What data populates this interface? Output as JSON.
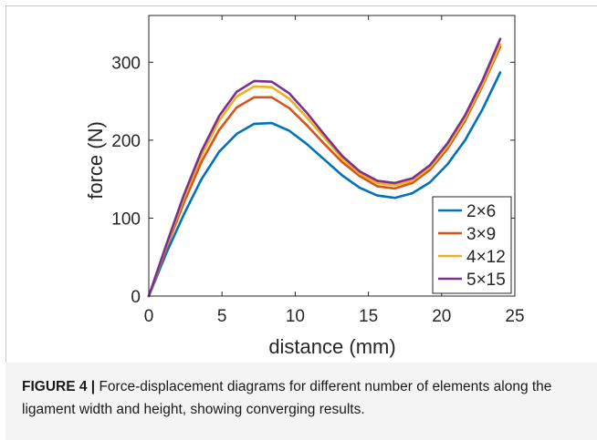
{
  "figure": {
    "caption_label": "FIGURE 4 |",
    "caption_text": " Force-displacement diagrams for different number of elements along the ligament width and height, showing converging results."
  },
  "chart_data": {
    "type": "line",
    "xlabel": "distance (mm)",
    "ylabel": "force (N)",
    "xlim": [
      0,
      25
    ],
    "ylim": [
      0,
      360
    ],
    "xticks": [
      0,
      5,
      10,
      15,
      20,
      25
    ],
    "yticks": [
      0,
      100,
      200,
      300
    ],
    "grid": false,
    "legend_position": "bottom-right",
    "series": [
      {
        "name": "2×6",
        "color": "#0072bd",
        "x": [
          0,
          1.2,
          2.4,
          3.6,
          4.8,
          6.0,
          7.2,
          8.4,
          9.6,
          10.8,
          12.0,
          13.2,
          14.4,
          15.6,
          16.8,
          18.0,
          19.2,
          20.4,
          21.6,
          22.8,
          24.0
        ],
        "y": [
          0,
          55,
          105,
          150,
          185,
          208,
          221,
          222,
          212,
          195,
          175,
          155,
          139,
          129,
          126,
          132,
          146,
          169,
          200,
          240,
          287
        ]
      },
      {
        "name": "3×9",
        "color": "#d95319",
        "x": [
          0,
          1.2,
          2.4,
          3.6,
          4.8,
          6.0,
          7.2,
          8.4,
          9.6,
          10.8,
          12.0,
          13.2,
          14.4,
          15.6,
          16.8,
          18.0,
          19.2,
          20.4,
          21.6,
          22.8,
          24.0
        ],
        "y": [
          0,
          62,
          120,
          172,
          213,
          242,
          255,
          255,
          241,
          219,
          195,
          172,
          154,
          141,
          138,
          145,
          162,
          189,
          225,
          270,
          320
        ]
      },
      {
        "name": "4×12",
        "color": "#edb120",
        "x": [
          0,
          1.2,
          2.4,
          3.6,
          4.8,
          6.0,
          7.2,
          8.4,
          9.6,
          10.8,
          12.0,
          13.2,
          14.4,
          15.6,
          16.8,
          18.0,
          19.2,
          20.4,
          21.6,
          22.8,
          24.0
        ],
        "y": [
          0,
          64,
          126,
          180,
          225,
          256,
          269,
          268,
          253,
          229,
          203,
          177,
          157,
          145,
          142,
          148,
          165,
          192,
          228,
          272,
          323
        ]
      },
      {
        "name": "5×15",
        "color": "#7e2f8e",
        "x": [
          0,
          1.2,
          2.4,
          3.6,
          4.8,
          6.0,
          7.2,
          8.4,
          9.6,
          10.8,
          12.0,
          13.2,
          14.4,
          15.6,
          16.8,
          18.0,
          19.2,
          20.4,
          21.6,
          22.8,
          24.0
        ],
        "y": [
          0,
          66,
          130,
          186,
          231,
          262,
          276,
          275,
          260,
          235,
          207,
          180,
          160,
          148,
          145,
          151,
          168,
          196,
          232,
          277,
          330
        ]
      }
    ]
  }
}
